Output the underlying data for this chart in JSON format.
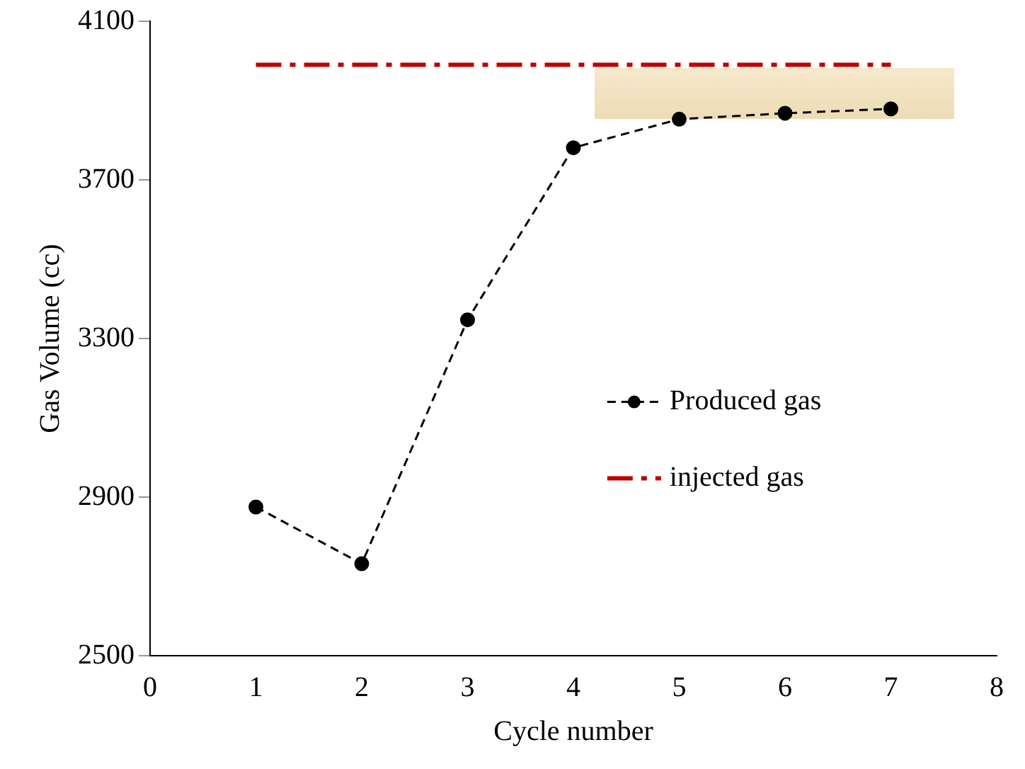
{
  "chart_data": {
    "type": "line",
    "xlabel": "Cycle number",
    "ylabel": "Gas Volume (cc)",
    "xlim": [
      0,
      8
    ],
    "xticks": [
      0,
      1,
      2,
      3,
      4,
      5,
      6,
      7,
      8
    ],
    "ylim": [
      2500,
      4100
    ],
    "yticks": [
      2500,
      2900,
      3300,
      3700,
      4100
    ],
    "grid": false,
    "legend": "right",
    "marker": "circle",
    "line_style": "dashed",
    "series": [
      {
        "name": "Produced gas",
        "color": "#000000",
        "x": [
          1,
          2,
          3,
          4,
          5,
          6,
          7
        ],
        "values": [
          2875,
          2732,
          3347,
          3781,
          3853,
          3868,
          3879
        ]
      },
      {
        "name": "injected gas",
        "color": "#c00000",
        "x": [
          1,
          7
        ],
        "values": [
          3990,
          3990
        ],
        "marker": "none",
        "line_style": "dashed"
      }
    ]
  }
}
